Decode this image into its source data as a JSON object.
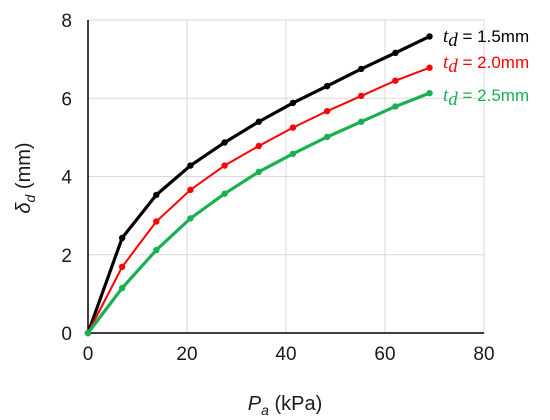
{
  "chart_data": {
    "type": "line",
    "xlabel_main": "P",
    "xlabel_sub": "a",
    "xlabel_unit": " (kPa)",
    "ylabel_main": "δ",
    "ylabel_sub": "d",
    "ylabel_unit": " (mm)",
    "xlim": [
      0,
      80
    ],
    "ylim": [
      0,
      8
    ],
    "x_ticks": [
      0,
      20,
      40,
      60,
      80
    ],
    "y_ticks": [
      0,
      2,
      4,
      6,
      8
    ],
    "grid": true,
    "series": [
      {
        "label_var": "t",
        "label_sub": "d",
        "label_rest": " = 1.5mm",
        "color": "#000000",
        "x": [
          0,
          6.9,
          13.8,
          20.7,
          27.6,
          34.5,
          41.4,
          48.3,
          55.2,
          62.1,
          69
        ],
        "y": [
          0,
          2.43,
          3.53,
          4.28,
          4.87,
          5.4,
          5.88,
          6.31,
          6.75,
          7.16,
          7.58
        ]
      },
      {
        "label_var": "t",
        "label_sub": "d",
        "label_rest": " = 2.0mm",
        "color": "#ff0000",
        "x": [
          0,
          6.9,
          13.8,
          20.7,
          27.6,
          34.5,
          41.4,
          48.3,
          55.2,
          62.1,
          69
        ],
        "y": [
          0,
          1.69,
          2.85,
          3.66,
          4.28,
          4.78,
          5.25,
          5.67,
          6.06,
          6.45,
          6.78
        ]
      },
      {
        "label_var": "t",
        "label_sub": "d",
        "label_rest": " = 2.5mm",
        "color": "#1aaf50",
        "x": [
          0,
          6.9,
          13.8,
          20.7,
          27.6,
          34.5,
          41.4,
          48.3,
          55.2,
          62.1,
          69
        ],
        "y": [
          0,
          1.15,
          2.12,
          2.93,
          3.56,
          4.12,
          4.58,
          5.01,
          5.4,
          5.79,
          6.13
        ]
      }
    ]
  }
}
